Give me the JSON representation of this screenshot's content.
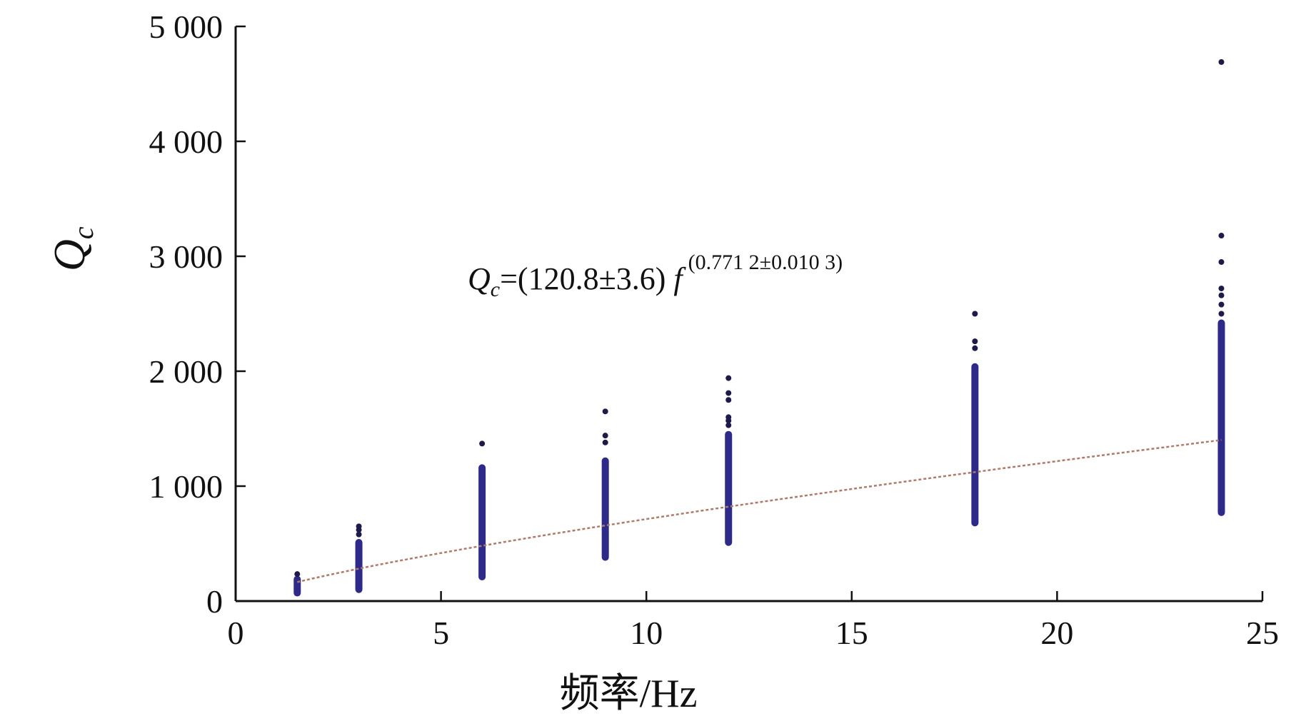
{
  "chart_data": {
    "type": "scatter",
    "title": "",
    "xlabel": "频率/Hz",
    "ylabel": {
      "main": "Q",
      "sub": "c"
    },
    "xlim": [
      0,
      25
    ],
    "ylim": [
      0,
      5000
    ],
    "xticks": [
      0,
      5,
      10,
      15,
      20,
      25
    ],
    "xtick_labels": [
      "0",
      "5",
      "10",
      "15",
      "20",
      "25"
    ],
    "yticks": [
      0,
      1000,
      2000,
      3000,
      4000,
      5000
    ],
    "ytick_labels": [
      "0",
      "1 000",
      "2 000",
      "3 000",
      "4 000",
      "5 000"
    ],
    "grid": false,
    "point_color": "#2e2a8a",
    "fit_color": "#b07a6a",
    "frequency_groups": [
      {
        "x": 1.5,
        "range": [
          40,
          220
        ],
        "outliers": [
          235
        ]
      },
      {
        "x": 3,
        "range": [
          70,
          540
        ],
        "outliers": [
          580,
          620,
          650
        ]
      },
      {
        "x": 6,
        "range": [
          180,
          1190
        ],
        "outliers": [
          1370
        ]
      },
      {
        "x": 9,
        "range": [
          350,
          1250
        ],
        "outliers": [
          1380,
          1440,
          1650
        ]
      },
      {
        "x": 12,
        "range": [
          480,
          1480
        ],
        "outliers": [
          1530,
          1570,
          1600,
          1750,
          1810,
          1940
        ]
      },
      {
        "x": 18,
        "range": [
          650,
          2070
        ],
        "outliers": [
          2200,
          2260,
          2500
        ]
      },
      {
        "x": 24,
        "range": [
          740,
          2450
        ],
        "outliers": [
          2500,
          2580,
          2660,
          2720,
          2950,
          3180,
          4690
        ]
      }
    ],
    "fit": {
      "a": 120.8,
      "b": 0.7712,
      "x_range": [
        1.5,
        24
      ],
      "label_lhs": "Q",
      "label_lhs_sub": "c",
      "label_eq": "=(120.8±3.6) ",
      "label_f": "f",
      "label_exp": "(0.771 2±0.010 3)"
    }
  }
}
